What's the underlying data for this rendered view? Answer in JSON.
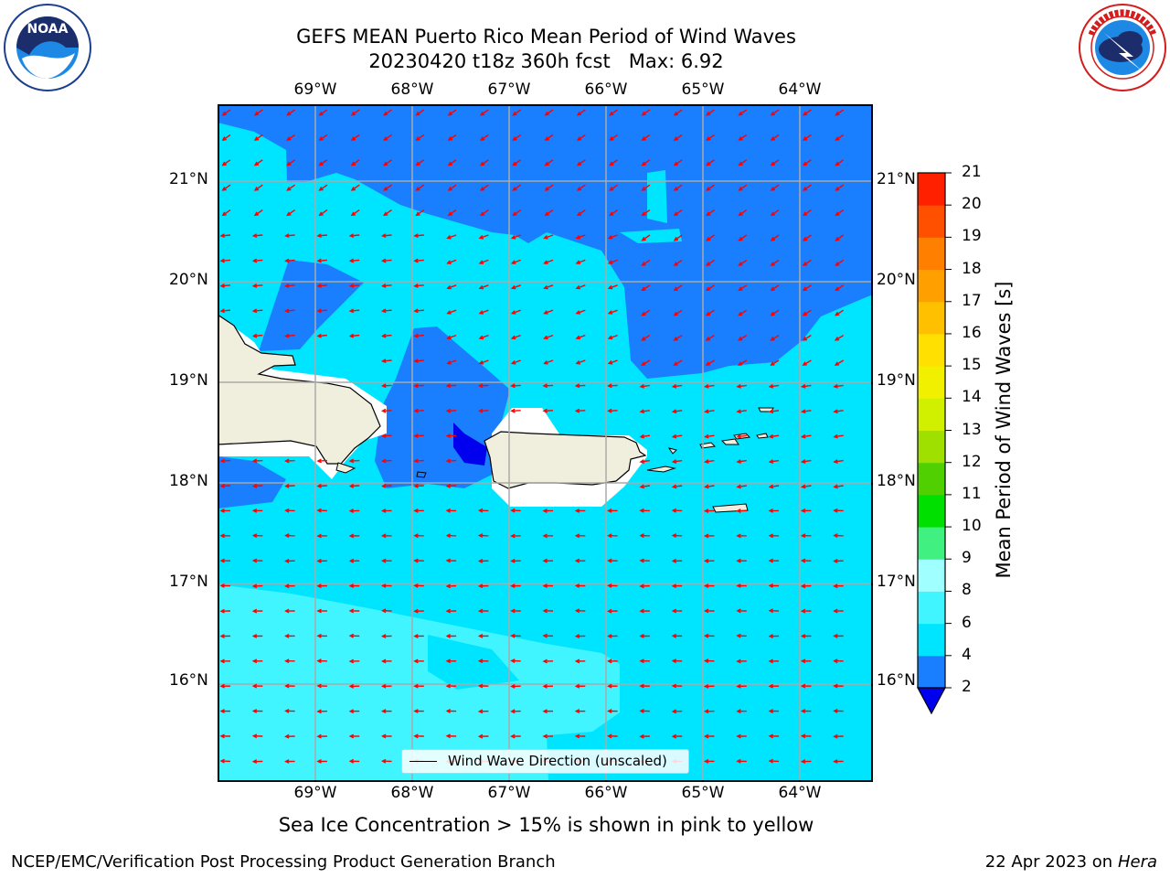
{
  "title": {
    "line1": "GEFS MEAN Puerto Rico Mean Period of Wind Waves",
    "line2": "20230420 t18z 360h fcst   Max: 6.92"
  },
  "longitude_labels": [
    "69°W",
    "68°W",
    "67°W",
    "66°W",
    "65°W",
    "64°W"
  ],
  "latitude_labels": [
    "21°N",
    "20°N",
    "19°N",
    "18°N",
    "17°N",
    "16°N"
  ],
  "legend": {
    "label": "Wind Wave Direction (unscaled)"
  },
  "colorbar": {
    "title": "Mean Period of Wind Waves [s]",
    "ticks": [
      "2",
      "4",
      "6",
      "8",
      "9",
      "10",
      "11",
      "12",
      "13",
      "14",
      "15",
      "16",
      "17",
      "18",
      "19",
      "20",
      "21"
    ],
    "colors": [
      "#1a7fff",
      "#00e5ff",
      "#40f5ff",
      "#a0ffff",
      "#40f080",
      "#00e000",
      "#50d000",
      "#a0e000",
      "#d0f000",
      "#f0f000",
      "#ffe000",
      "#ffc000",
      "#ffa000",
      "#ff8000",
      "#ff5000",
      "#ff2000",
      "#ff0000"
    ],
    "extend_color": "#0000ee"
  },
  "sea_ice_note": "Sea Ice Concentration > 15% is shown in pink to yellow",
  "footer": {
    "left": "NCEP/EMC/Verification Post Processing Product Generation Branch",
    "right_prefix": "22 Apr 2023 on ",
    "right_host": "Hera"
  },
  "map_colors": {
    "land": "#f0eedc",
    "period_2_4": "#1a7fff",
    "period_4_6": "#00e5ff",
    "period_6_8": "#40f5ff",
    "period_lt2": "#0000ee",
    "arrow": "#ff0000"
  }
}
